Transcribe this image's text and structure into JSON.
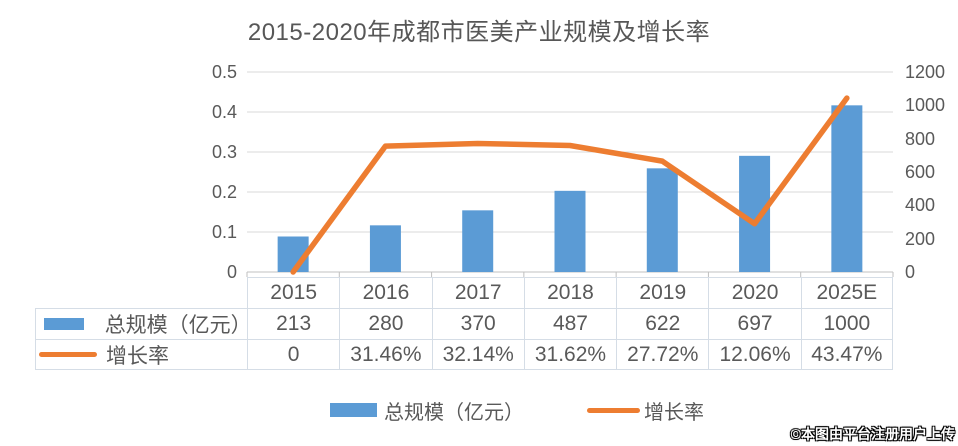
{
  "title": "2015-2020年成都市医美产业规模及增长率",
  "watermark": "©本图由平台注册用户上传",
  "colors": {
    "bar": "#5B9BD5",
    "line": "#ED7D31",
    "grid": "#D9D9D9",
    "baseline": "#C2C2C2",
    "tick": "#BFBFBF",
    "axis_text": "#595959",
    "table_border": "#D5DDE6",
    "table_text": "#595959",
    "title_text": "#575757"
  },
  "chart_data": {
    "type": "bar+line",
    "title": "2015-2020年成都市医美产业规模及增长率",
    "categories": [
      "2015",
      "2016",
      "2017",
      "2018",
      "2019",
      "2020",
      "2025E"
    ],
    "series": [
      {
        "name": "总规模（亿元）",
        "type": "bar",
        "axis": "right",
        "color": "#5B9BD5",
        "values": [
          213,
          280,
          370,
          487,
          622,
          697,
          1000
        ],
        "table_labels": [
          "213",
          "280",
          "370",
          "487",
          "622",
          "697",
          "1000"
        ]
      },
      {
        "name": "增长率",
        "type": "line",
        "axis": "left",
        "color": "#ED7D31",
        "values": [
          0,
          0.3146,
          0.3214,
          0.3162,
          0.2772,
          0.1206,
          0.4347
        ],
        "table_labels": [
          "0",
          "31.46%",
          "32.14%",
          "31.62%",
          "27.72%",
          "12.06%",
          "43.47%"
        ]
      }
    ],
    "axis_left": {
      "min": 0,
      "max": 0.5,
      "ticks": [
        "0",
        "0.1",
        "0.2",
        "0.3",
        "0.4",
        "0.5"
      ]
    },
    "axis_right": {
      "min": 0,
      "max": 1200,
      "ticks": [
        "0",
        "200",
        "400",
        "600",
        "800",
        "1000",
        "1200"
      ]
    },
    "grid": "horizontal",
    "legend_position": "bottom",
    "data_table": true
  }
}
